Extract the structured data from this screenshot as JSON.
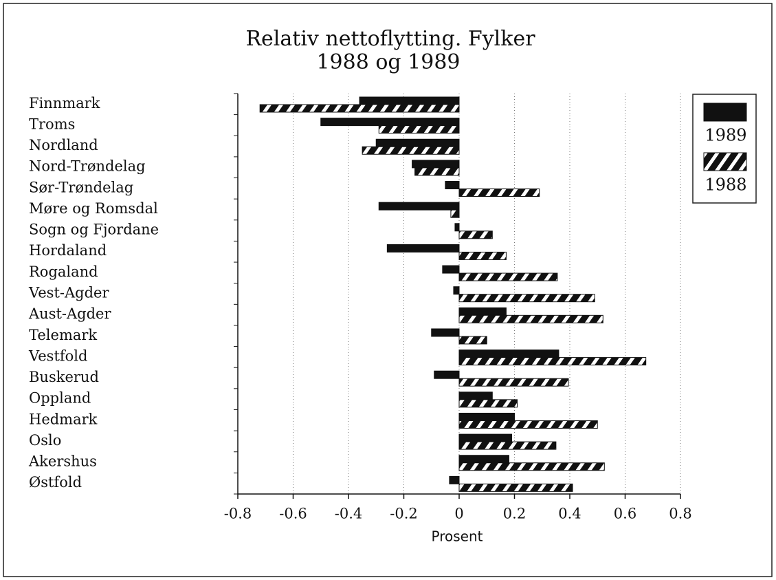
{
  "chart_data": {
    "type": "barh",
    "title": "Relativ nettoflytting. Fylker",
    "subtitle": "1988 og 1989",
    "x_label": "Prosent",
    "categories": [
      "Finnmark",
      "Troms",
      "Nordland",
      "Nord-Trøndelag",
      "Sør-Trøndelag",
      "Møre og Romsdal",
      "Sogn og Fjordane",
      "Hordaland",
      "Rogaland",
      "Vest-Agder",
      "Aust-Agder",
      "Telemark",
      "Vestfold",
      "Buskerud",
      "Oppland",
      "Hedmark",
      "Oslo",
      "Akershus",
      "Østfold"
    ],
    "series": [
      {
        "name": "1989",
        "color": "#111111",
        "fill": "solid",
        "values": [
          -0.36,
          -0.5,
          -0.3,
          -0.17,
          -0.05,
          -0.29,
          -0.015,
          -0.26,
          -0.06,
          -0.02,
          0.17,
          -0.1,
          0.36,
          -0.09,
          0.12,
          0.2,
          0.19,
          0.18,
          -0.035
        ]
      },
      {
        "name": "1988",
        "color": "#111111",
        "fill": "hatch",
        "values": [
          -0.72,
          -0.29,
          -0.35,
          -0.16,
          0.29,
          -0.03,
          0.12,
          0.17,
          0.355,
          0.49,
          0.52,
          0.1,
          0.675,
          0.395,
          0.21,
          0.5,
          0.35,
          0.525,
          0.41
        ]
      }
    ],
    "xlim": [
      -0.8,
      0.8
    ],
    "xticks": [
      -0.8,
      -0.6,
      -0.4,
      -0.2,
      0,
      0.2,
      0.4,
      0.6,
      0.8
    ],
    "grid": true,
    "legend": "right"
  }
}
